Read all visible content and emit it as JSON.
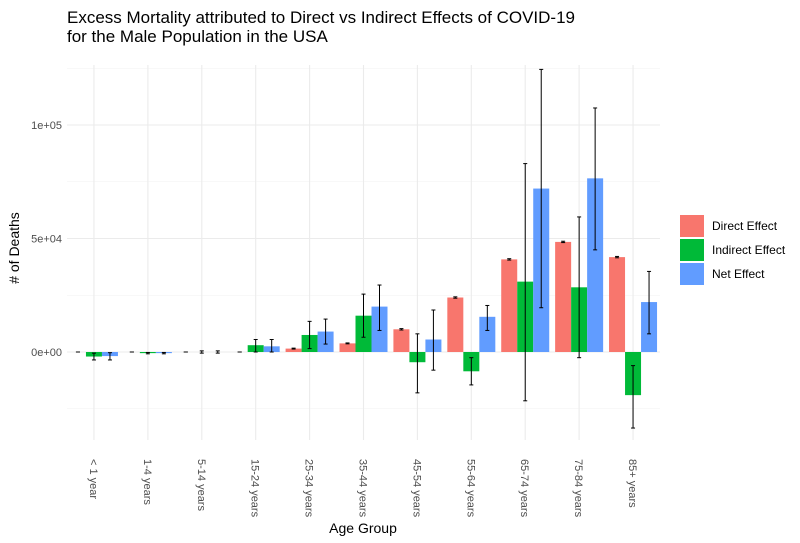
{
  "chart_data": {
    "type": "bar",
    "title_lines": [
      "Excess Mortality attributed to Direct vs Indirect Effects of COVID-19",
      "for the Male Population in the USA"
    ],
    "xlabel": "Age Group",
    "ylabel": "# of Deaths",
    "categories": [
      "< 1 year",
      "1-4 years",
      "5-14 years",
      "15-24 years",
      "25-34 years",
      "35-44 years",
      "45-54 years",
      "55-64 years",
      "65-74 years",
      "75-84 years",
      "85+ years"
    ],
    "ylim": [
      -38000,
      128000
    ],
    "yticks": [
      0,
      50000,
      100000
    ],
    "ytick_labels": [
      "0e+00",
      "5e+04",
      "1e+05"
    ],
    "grid": true,
    "legend_position": "right",
    "series": [
      {
        "name": "Direct Effect",
        "color": "#F8766D",
        "values": [
          0,
          0,
          0,
          0,
          1500,
          3800,
          10000,
          24000,
          40800,
          48500,
          41800
        ],
        "err_low": [
          0,
          0,
          0,
          0,
          1300,
          3600,
          9700,
          23700,
          40500,
          48200,
          41500
        ],
        "err_high": [
          0,
          0,
          0,
          0,
          1700,
          4000,
          10300,
          24300,
          41100,
          48800,
          42100
        ]
      },
      {
        "name": "Indirect Effect",
        "color": "#00BA38",
        "values": [
          -2000,
          -500,
          0,
          3000,
          7500,
          16000,
          -4500,
          -8500,
          31000,
          28500,
          -19000
        ],
        "err_low": [
          -3500,
          -800,
          -500,
          0,
          1500,
          6500,
          -18000,
          -14500,
          -21500,
          -2500,
          -33500
        ],
        "err_high": [
          -500,
          -200,
          500,
          5500,
          13500,
          25500,
          8000,
          -2500,
          83000,
          59500,
          -6000
        ]
      },
      {
        "name": "Net Effect",
        "color": "#619CFF",
        "values": [
          -1800,
          -500,
          0,
          2500,
          9000,
          20000,
          5500,
          15500,
          72000,
          76500,
          22000
        ],
        "err_low": [
          -3500,
          -800,
          -500,
          0,
          3500,
          9500,
          -8000,
          9500,
          19500,
          45000,
          8000
        ],
        "err_high": [
          -300,
          -200,
          500,
          5500,
          14500,
          29500,
          18500,
          20500,
          124500,
          107500,
          35500
        ]
      }
    ]
  }
}
